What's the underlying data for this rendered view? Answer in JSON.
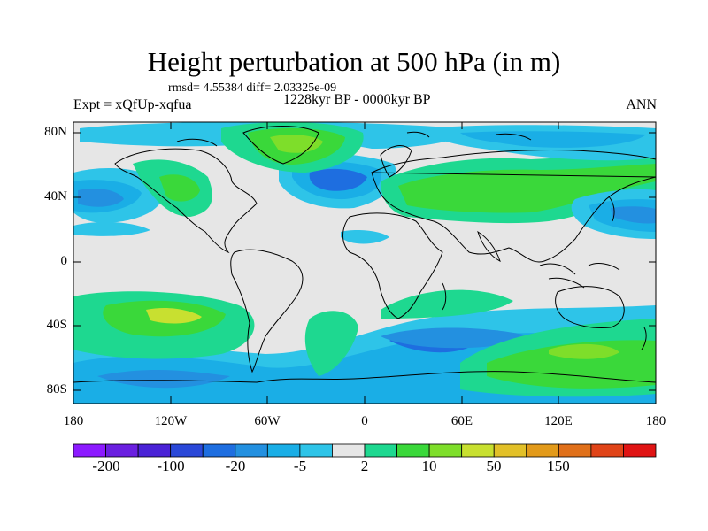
{
  "title": "Height perturbation at 500 hPa (in m)",
  "stats": "rmsd= 4.55384 diff= 2.03325e-09",
  "period": "1228kyr BP - 0000kyr BP",
  "experiment": "Expt = xQfUp-xqfua",
  "season": "ANN",
  "lat_labels": [
    "80N",
    "40N",
    "0",
    "40S",
    "80S"
  ],
  "lon_labels": [
    "180",
    "120W",
    "60W",
    "0",
    "60E",
    "120E",
    "180"
  ],
  "colorbar_labels": [
    "-200",
    "-100",
    "-20",
    "-5",
    "2",
    "10",
    "50",
    "150"
  ],
  "colorbar_colors": [
    "#8c1aff",
    "#6a1fe0",
    "#4a22d6",
    "#2a48d8",
    "#1e6ee0",
    "#2390e0",
    "#1aaee6",
    "#2ec4e8",
    "#e6e6e6",
    "#1ed890",
    "#3ad83a",
    "#7ede2a",
    "#c8e030",
    "#e2c028",
    "#e29a1a",
    "#e0701a",
    "#e04418",
    "#e01414"
  ],
  "colors": {
    "missing": "#e6e6e6",
    "coastline": "#000000"
  }
}
